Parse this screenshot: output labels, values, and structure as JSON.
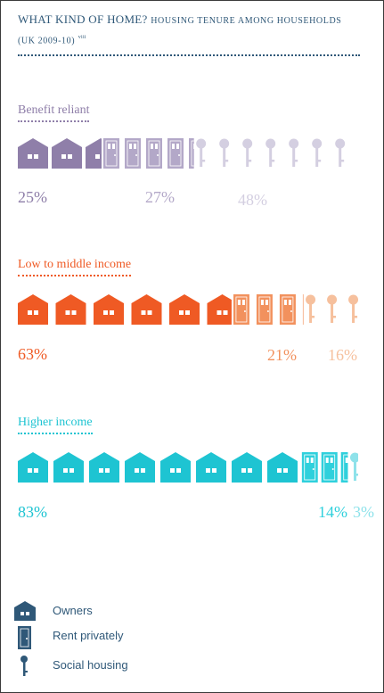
{
  "header": {
    "title_main": "What kind of home?",
    "title_sub": "Housing tenure among households",
    "title_line2": "(UK 2009-10)",
    "footnote_mark": "viii"
  },
  "colors": {
    "benefit_owner": "#8f7fa9",
    "benefit_rent": "#b3a8c8",
    "benefit_social": "#d4cfe1",
    "lowmid_owner": "#ef5a24",
    "lowmid_rent": "#f2915d",
    "lowmid_social": "#f6c09d",
    "higher_owner": "#1ec4d2",
    "higher_rent": "#2fd0dc",
    "higher_social": "#8ee2ea",
    "legend": "#2f5878"
  },
  "chart_data": {
    "type": "bar",
    "subtype": "pictogram-stacked-100",
    "categories": [
      "Benefit reliant",
      "Low to middle income",
      "Higher income"
    ],
    "series": [
      {
        "name": "Owners",
        "values": [
          25,
          63,
          83
        ]
      },
      {
        "name": "Rent privately",
        "values": [
          27,
          21,
          14
        ]
      },
      {
        "name": "Social housing",
        "values": [
          48,
          16,
          3
        ]
      }
    ],
    "unit": "%",
    "labels": {
      "benefit": [
        "25%",
        "27%",
        "48%"
      ],
      "lowmid": [
        "63%",
        "21%",
        "16%"
      ],
      "higher": [
        "83%",
        "14%",
        "3%"
      ]
    }
  },
  "legend": {
    "items": [
      {
        "label": "Owners",
        "icon": "house-icon"
      },
      {
        "label": "Rent privately",
        "icon": "door-icon"
      },
      {
        "label": "Social housing",
        "icon": "key-icon"
      }
    ]
  }
}
